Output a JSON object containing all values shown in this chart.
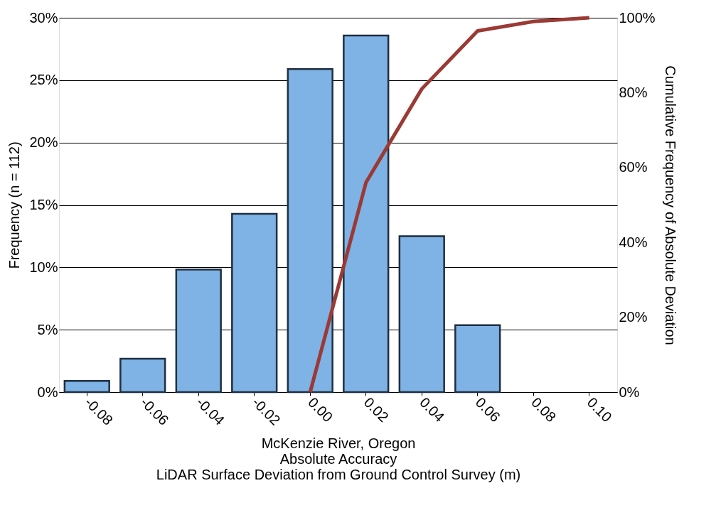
{
  "chart_data": {
    "type": "bar",
    "xlabel": "McKenzie River, Oregon\nAbsolute Accuracy\nLiDAR Surface Deviation from Ground Control Survey (m)",
    "ylabel": "Frequency (n = 112)",
    "y2label": "Cumulative Frequency of Absolute Deviation",
    "categories": [
      "-0.08",
      "-0.06",
      "-0.04",
      "-0.02",
      "0.00",
      "0.02",
      "0.04",
      "0.06",
      "0.08",
      "0.10"
    ],
    "series": [
      {
        "color": "#7fb2e5",
        "values": [
          0.89,
          2.68,
          9.82,
          14.29,
          25.89,
          28.57,
          12.5,
          5.36,
          null,
          null
        ]
      },
      {
        "type": "line",
        "axis": "y2",
        "color": "#9b3a35",
        "values": [
          null,
          null,
          null,
          null,
          0,
          56,
          81,
          96.5,
          99,
          100
        ]
      }
    ],
    "ylim": [
      0,
      30
    ],
    "yticks": [
      {
        "value": 0,
        "label": "0%"
      },
      {
        "value": 5,
        "label": "5%"
      },
      {
        "value": 10,
        "label": "10%"
      },
      {
        "value": 15,
        "label": "15%"
      },
      {
        "value": 20,
        "label": "20%"
      },
      {
        "value": 25,
        "label": "25%"
      },
      {
        "value": 30,
        "label": "30%"
      }
    ],
    "y2lim": [
      0,
      100
    ],
    "y2ticks": [
      {
        "value": 0,
        "label": "0%"
      },
      {
        "value": 20,
        "label": "20%"
      },
      {
        "value": 40,
        "label": "40%"
      },
      {
        "value": 60,
        "label": "60%"
      },
      {
        "value": 80,
        "label": "80%"
      },
      {
        "value": 100,
        "label": "100%"
      }
    ],
    "grid": "y",
    "line_style": "solid",
    "marker": "none"
  }
}
